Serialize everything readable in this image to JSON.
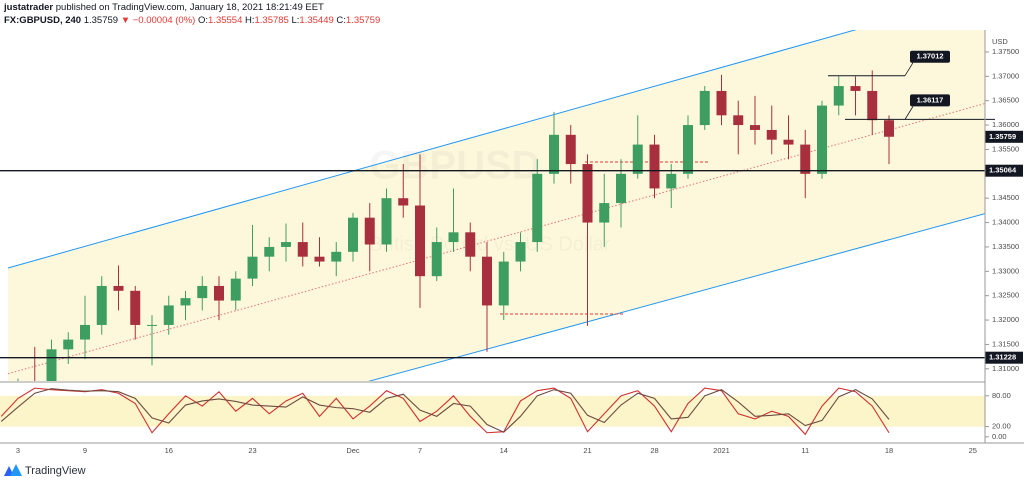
{
  "header": {
    "author": "justatrader",
    "published": "published on TradingView.com, January 18, 2021 18:21:49 EET",
    "symbol": "FX:GBPUSD, 240",
    "price": "1.35759",
    "change": "▼ −0.00004 (0%)",
    "ohlc": [
      {
        "label": "O:",
        "value": "1.35554"
      },
      {
        "label": "H:",
        "value": "1.35785"
      },
      {
        "label": "L:",
        "value": "1.35449"
      },
      {
        "label": "C:",
        "value": "1.35759"
      }
    ]
  },
  "watermark": {
    "symbol": "GBPUSD",
    "description": "British Pound vs. US Dollar"
  },
  "footer": {
    "brand": "TradingView"
  },
  "chart_data": [
    {
      "type": "candlestick",
      "currency": "USD",
      "categories": [
        null,
        "3",
        null,
        null,
        null,
        "9",
        null,
        null,
        null,
        null,
        "16",
        null,
        null,
        null,
        null,
        "23",
        null,
        null,
        null,
        null,
        null,
        "Dec",
        null,
        null,
        null,
        "7",
        null,
        null,
        null,
        null,
        "14",
        null,
        null,
        null,
        null,
        "21",
        null,
        null,
        null,
        "28",
        null,
        null,
        null,
        "2021",
        null,
        null,
        null,
        null,
        "11",
        null,
        null,
        null,
        null,
        "18",
        null,
        null,
        null,
        null,
        "25"
      ],
      "open": [
        1.296,
        1.299,
        1.306,
        1.305,
        1.314,
        1.316,
        1.319,
        1.327,
        1.326,
        1.319,
        1.319,
        1.323,
        1.3245,
        1.327,
        1.324,
        1.3285,
        1.333,
        1.335,
        1.336,
        1.333,
        1.332,
        1.334,
        1.341,
        1.3355,
        1.345,
        1.3435,
        1.329,
        1.336,
        1.338,
        1.333,
        1.323,
        1.332,
        1.336,
        1.35,
        1.358,
        1.352,
        1.34,
        1.344,
        1.35,
        1.356,
        1.347,
        1.35,
        1.36,
        1.367,
        1.362,
        1.36,
        1.359,
        1.357,
        1.356,
        1.35,
        1.364,
        1.368,
        1.367,
        1.361,
        null,
        null,
        null,
        null,
        null
      ],
      "high": [
        1.301,
        1.308,
        1.3145,
        1.316,
        1.3175,
        1.325,
        1.329,
        1.3312,
        1.327,
        1.321,
        1.325,
        1.326,
        1.329,
        1.329,
        1.33,
        1.3395,
        1.337,
        1.3398,
        1.34,
        1.337,
        1.336,
        1.342,
        1.344,
        1.347,
        1.352,
        1.354,
        1.339,
        1.347,
        1.34,
        1.336,
        1.334,
        1.338,
        1.353,
        1.3627,
        1.36,
        1.354,
        1.35,
        1.353,
        1.362,
        1.358,
        1.352,
        1.362,
        1.368,
        1.3703,
        1.365,
        1.366,
        1.364,
        1.362,
        1.359,
        1.365,
        1.37,
        1.37,
        1.3712,
        1.362,
        null,
        null,
        null,
        null,
        null
      ],
      "low": [
        1.292,
        1.295,
        1.296,
        1.303,
        1.311,
        1.312,
        1.317,
        1.322,
        1.316,
        1.3107,
        1.317,
        1.32,
        1.322,
        1.32,
        1.322,
        1.327,
        1.33,
        1.332,
        1.331,
        1.331,
        1.329,
        1.332,
        1.33,
        1.334,
        1.341,
        1.3225,
        1.328,
        1.334,
        1.33,
        1.3135,
        1.32,
        1.33,
        1.334,
        1.348,
        1.348,
        1.3188,
        1.335,
        1.339,
        1.349,
        1.345,
        1.343,
        1.349,
        1.359,
        1.36,
        1.354,
        1.356,
        1.354,
        1.353,
        1.345,
        1.349,
        1.362,
        1.362,
        1.358,
        1.352,
        null,
        null,
        null,
        null,
        null
      ],
      "close": [
        1.299,
        1.306,
        1.3045,
        1.314,
        1.316,
        1.319,
        1.327,
        1.326,
        1.319,
        1.319,
        1.323,
        1.3245,
        1.327,
        1.324,
        1.3285,
        1.333,
        1.335,
        1.336,
        1.333,
        1.332,
        1.334,
        1.341,
        1.3355,
        1.345,
        1.3435,
        1.329,
        1.336,
        1.338,
        1.333,
        1.323,
        1.332,
        1.336,
        1.35,
        1.358,
        1.352,
        1.34,
        1.344,
        1.35,
        1.356,
        1.347,
        1.35,
        1.36,
        1.367,
        1.362,
        1.36,
        1.359,
        1.357,
        1.356,
        1.35,
        1.364,
        1.368,
        1.367,
        1.361,
        1.3576,
        null,
        null,
        null,
        null,
        null
      ],
      "up_color": "#3e9e62",
      "down_color": "#a8303e",
      "ylim": [
        1.3075,
        1.3795
      ],
      "yticks": [
        {
          "value": 1.375,
          "label": "1.37500"
        },
        {
          "value": 1.37,
          "label": "1.37000"
        },
        {
          "value": 1.365,
          "label": "1.36500"
        },
        {
          "value": 1.36,
          "label": "1.36000"
        },
        {
          "value": 1.355,
          "label": "1.35500"
        },
        {
          "value": 1.345,
          "label": "1.34500"
        },
        {
          "value": 1.34,
          "label": "1.34000"
        },
        {
          "value": 1.335,
          "label": "1.33500"
        },
        {
          "value": 1.33,
          "label": "1.33000"
        },
        {
          "value": 1.325,
          "label": "1.32500"
        },
        {
          "value": 1.32,
          "label": "1.32000"
        },
        {
          "value": 1.315,
          "label": "1.31500"
        },
        {
          "value": 1.31,
          "label": "1.31000"
        }
      ],
      "levels": [
        1.37012,
        1.36117,
        1.35064,
        1.31228
      ],
      "last_price": 1.35759,
      "grid": false
    },
    {
      "type": "line",
      "series": [
        {
          "color": "#d32f2f",
          "values": [
            40,
            75,
            95,
            92,
            90,
            88,
            92,
            85,
            65,
            8,
            45,
            80,
            60,
            88,
            50,
            75,
            45,
            70,
            85,
            40,
            75,
            35,
            60,
            90,
            75,
            30,
            50,
            80,
            40,
            8,
            10,
            70,
            90,
            95,
            75,
            10,
            45,
            80,
            90,
            60,
            10,
            65,
            95,
            90,
            45,
            35,
            50,
            40,
            5,
            60,
            95,
            88,
            60,
            8,
            null,
            null,
            null,
            null,
            null
          ]
        },
        {
          "color": "#6d4c41",
          "values": [
            30,
            58,
            85,
            94,
            91,
            89,
            90,
            88,
            75,
            37,
            27,
            62,
            70,
            74,
            69,
            62,
            60,
            58,
            78,
            62,
            57,
            55,
            48,
            75,
            83,
            52,
            40,
            65,
            60,
            24,
            9,
            40,
            80,
            92,
            85,
            42,
            28,
            62,
            85,
            75,
            35,
            38,
            80,
            92,
            68,
            40,
            42,
            45,
            22,
            32,
            78,
            92,
            74,
            34,
            null,
            null,
            null,
            null,
            null
          ]
        }
      ],
      "ylim": [
        -12,
        105
      ],
      "yticks": [
        {
          "value": 80,
          "label": "80.00"
        },
        {
          "value": 20,
          "label": "20.00"
        },
        {
          "value": 0,
          "label": "0.00"
        }
      ],
      "band": [
        20,
        80
      ],
      "band_color": "#fbf5c9"
    }
  ]
}
